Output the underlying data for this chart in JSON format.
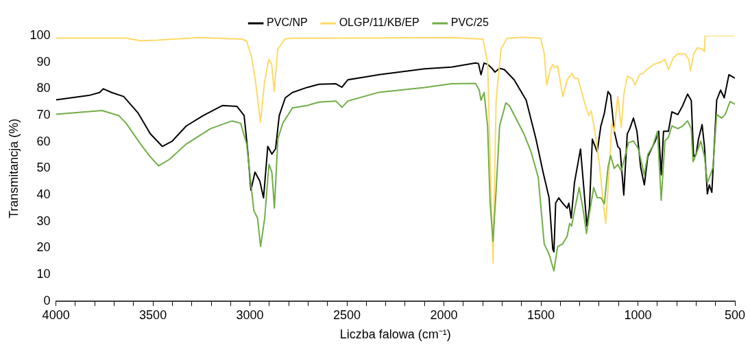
{
  "chart_data": {
    "type": "line",
    "xlabel": "Liczba falowa (cm⁻¹)",
    "ylabel": "Transmitancja (%)",
    "legend": "top",
    "marker": "none",
    "xlim": [
      4000,
      500
    ],
    "ylim": [
      0,
      100
    ],
    "xticks": [
      4000,
      {
        "value": 3900,
        "label": null
      },
      {
        "value": 3800,
        "label": null
      },
      {
        "value": 3700,
        "label": null
      },
      {
        "value": 3600,
        "label": null
      },
      3500,
      {
        "value": 3400,
        "label": null
      },
      {
        "value": 3300,
        "label": null
      },
      {
        "value": 3200,
        "label": null
      },
      {
        "value": 3100,
        "label": null
      },
      3000,
      {
        "value": 2900,
        "label": null
      },
      {
        "value": 2800,
        "label": null
      },
      {
        "value": 2700,
        "label": null
      },
      {
        "value": 2600,
        "label": null
      },
      2500,
      {
        "value": 2400,
        "label": null
      },
      {
        "value": 2300,
        "label": null
      },
      {
        "value": 2200,
        "label": null
      },
      {
        "value": 2100,
        "label": null
      },
      2000,
      {
        "value": 1900,
        "label": null
      },
      {
        "value": 1800,
        "label": null
      },
      {
        "value": 1700,
        "label": null
      },
      {
        "value": 1600,
        "label": null
      },
      1500,
      {
        "value": 1400,
        "label": null
      },
      {
        "value": 1300,
        "label": null
      },
      {
        "value": 1200,
        "label": null
      },
      {
        "value": 1100,
        "label": null
      },
      1000,
      {
        "value": 900,
        "label": null
      },
      {
        "value": 800,
        "label": null
      },
      {
        "value": 700,
        "label": null
      },
      {
        "value": 600,
        "label": null
      },
      500
    ],
    "yticks": [
      0,
      10,
      20,
      30,
      40,
      50,
      60,
      70,
      80,
      90,
      100
    ],
    "series": [
      {
        "name": "PVC/NP",
        "color": "#000000",
        "x": [
          4000,
          3825,
          3775,
          3756,
          3713,
          3651,
          3576,
          3514,
          3452,
          3402,
          3328,
          3241,
          3141,
          3067,
          3030,
          3011,
          2995,
          2974,
          2949,
          2930,
          2908,
          2887,
          2868,
          2849,
          2818,
          2781,
          2706,
          2644,
          2557,
          2526,
          2495,
          2408,
          2334,
          2100,
          1961,
          1837,
          1822,
          1809,
          1793,
          1775,
          1756,
          1737,
          1713,
          1688,
          1638,
          1576,
          1526,
          1489,
          1458,
          1439,
          1433,
          1424,
          1408,
          1389,
          1365,
          1356,
          1344,
          1327,
          1296,
          1278,
          1263,
          1250,
          1235,
          1210,
          1191,
          1173,
          1154,
          1141,
          1122,
          1104,
          1092,
          1073,
          1055,
          1042,
          1023,
          1005,
          986,
          967,
          949,
          930,
          911,
          893,
          880,
          868,
          843,
          825,
          794,
          769,
          744,
          725,
          713,
          700,
          688,
          669,
          657,
          642,
          632,
          619,
          594,
          574,
          555,
          531,
          500
        ],
        "values": [
          75.8,
          77.6,
          78.6,
          80,
          78.6,
          77.1,
          70.8,
          63.1,
          58.3,
          60.2,
          66,
          69.9,
          73.7,
          73.4,
          69.9,
          56.3,
          41.8,
          48.6,
          45.2,
          38.9,
          58.3,
          55.4,
          57.4,
          69.9,
          76.6,
          78.6,
          80.5,
          81.7,
          81.9,
          80.6,
          83.4,
          84.4,
          85.3,
          87.5,
          88.2,
          89.7,
          89.5,
          85.3,
          89.7,
          89.2,
          88,
          86.3,
          87.7,
          87.2,
          83.4,
          75.7,
          61.2,
          48.6,
          38.9,
          19.6,
          18.6,
          37,
          38.9,
          37,
          35,
          36.9,
          31.3,
          44.7,
          57.3,
          41.8,
          28.3,
          35,
          61,
          56.3,
          66,
          70.8,
          79,
          77.6,
          64,
          58.3,
          57.3,
          40,
          63,
          65,
          69,
          64,
          50.5,
          43.8,
          54.5,
          57.4,
          60.3,
          64,
          47.6,
          64,
          64,
          71.3,
          70.3,
          73.7,
          78,
          75.6,
          54.5,
          55.3,
          61,
          66.5,
          58.3,
          40.4,
          43.8,
          41,
          75.7,
          79.5,
          76.6,
          85.3,
          84
        ]
      },
      {
        "name": "OLGP/11/KB/EP",
        "color": "#ffd966",
        "x": [
          4000,
          3639,
          3565,
          3477,
          3266,
          3042,
          3017,
          2992,
          2974,
          2946,
          2925,
          2903,
          2888,
          2875,
          2857,
          2819,
          2782,
          1961,
          1799,
          1775,
          1747,
          1731,
          1706,
          1675,
          1588,
          1501,
          1483,
          1470,
          1452,
          1439,
          1427,
          1414,
          1387,
          1365,
          1340,
          1327,
          1309,
          1271,
          1253,
          1241,
          1222,
          1197,
          1179,
          1166,
          1147,
          1135,
          1122,
          1104,
          1086,
          1073,
          1055,
          1030,
          1015,
          992,
          973,
          955,
          918,
          880,
          861,
          843,
          818,
          794,
          756,
          738,
          729,
          713,
          694,
          669,
          657,
          654,
          500
        ],
        "values": [
          99.1,
          99.1,
          98.1,
          98.3,
          99.3,
          98.7,
          98,
          92,
          84.3,
          67.4,
          82.4,
          91.1,
          89.2,
          79,
          94.9,
          98.8,
          99,
          99.3,
          98.7,
          90,
          14.3,
          75.7,
          94.9,
          99,
          99.4,
          99,
          93.3,
          81.4,
          87.2,
          89.2,
          87.9,
          88.7,
          77.1,
          83.4,
          85.8,
          83.9,
          83.9,
          73.7,
          69.9,
          71.8,
          64,
          50.5,
          37,
          29.3,
          50.5,
          67,
          64,
          77.1,
          65.5,
          77.6,
          84.8,
          83.9,
          81.4,
          85.3,
          85.8,
          87.2,
          89.2,
          90.1,
          91.1,
          87.2,
          91.6,
          93.2,
          93.1,
          91.1,
          86.8,
          93.1,
          95.4,
          95,
          94,
          100,
          100
        ]
      },
      {
        "name": "PVC/25",
        "color": "#70ad47",
        "x": [
          4000,
          3763,
          3676,
          3638,
          3564,
          3514,
          3471,
          3415,
          3328,
          3203,
          3092,
          3048,
          3017,
          2980,
          2961,
          2945,
          2924,
          2902,
          2887,
          2874,
          2856,
          2831,
          2781,
          2706,
          2644,
          2557,
          2526,
          2495,
          2334,
          2100,
          1961,
          1837,
          1818,
          1809,
          1793,
          1775,
          1762,
          1747,
          1731,
          1713,
          1681,
          1663,
          1588,
          1551,
          1514,
          1483,
          1458,
          1433,
          1414,
          1389,
          1365,
          1352,
          1342,
          1327,
          1303,
          1284,
          1265,
          1250,
          1228,
          1210,
          1191,
          1173,
          1154,
          1141,
          1122,
          1104,
          1086,
          1067,
          1049,
          1023,
          998,
          967,
          949,
          924,
          899,
          880,
          861,
          843,
          825,
          794,
          769,
          744,
          725,
          716,
          700,
          676,
          657,
          642,
          626,
          613,
          594,
          569,
          550,
          525,
          500
        ],
        "values": [
          70.4,
          71.8,
          69.9,
          67,
          59.2,
          54.4,
          51,
          53.4,
          59.2,
          65,
          67.9,
          67,
          59.2,
          34.1,
          31.3,
          20.6,
          31.3,
          51.5,
          48.6,
          35.1,
          61.2,
          67,
          72.8,
          73.7,
          75,
          75.4,
          73,
          75.4,
          78.7,
          80.5,
          81.9,
          82,
          79.5,
          75.7,
          78.6,
          66,
          37,
          22.5,
          41.8,
          66,
          74.7,
          73.7,
          63.1,
          56.3,
          46.7,
          21.5,
          17.7,
          11.4,
          20.6,
          21.5,
          24.4,
          29.3,
          28.3,
          34.1,
          42.8,
          35.1,
          25.5,
          33,
          42.8,
          39,
          39,
          36.7,
          50.5,
          54.9,
          50,
          51.5,
          49,
          54.5,
          59.7,
          60.3,
          57.4,
          47.6,
          55.3,
          58.3,
          64,
          38,
          60.3,
          61.7,
          66,
          65,
          66,
          67.9,
          65,
          52.5,
          55.3,
          60.3,
          54.5,
          44.7,
          47.6,
          50.5,
          70.3,
          69,
          70.3,
          75.2,
          74.2
        ]
      }
    ]
  }
}
